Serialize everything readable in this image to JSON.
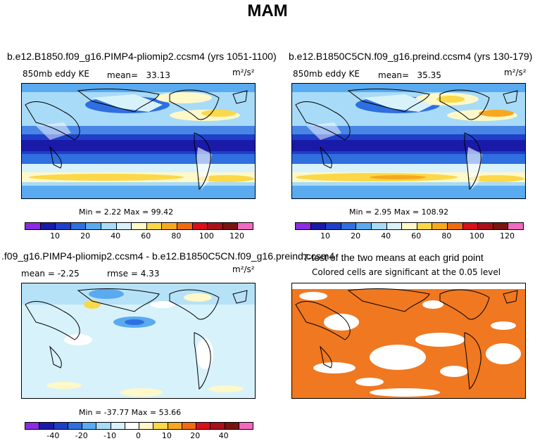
{
  "figure": {
    "title": "MAM"
  },
  "panels": [
    {
      "id": "p1",
      "title": "b.e12.B1850.f09_g16.PIMP4-pliomip2.ccsm4 (yrs 1051-1100)",
      "variable": "850mb eddy KE",
      "stat_label": "mean=",
      "stat_value": "33.13",
      "units": "m²/s²",
      "minmax_text": "Min =    2.22  Max =   99.42"
    },
    {
      "id": "p2",
      "title": "b.e12.B1850C5CN.f09_g16.preind.ccsm4 (yrs 130-179)",
      "variable": "850mb eddy KE",
      "stat_label": "mean=",
      "stat_value": "35.35",
      "units": "m²/s²",
      "minmax_text": "Min =    2.95  Max =  108.92"
    },
    {
      "id": "p3",
      "title": ".f09_g16.PIMP4-pliomip2.ccsm4 - b.e12.B1850C5CN.f09_g16.preind.ccsm4",
      "mean_text": "mean =   -2.25",
      "rmse_text": "rmse =    4.33",
      "units": "m²/s²",
      "minmax_text": "Min = -37.77  Max =   53.66"
    },
    {
      "id": "p4",
      "title": "T-test of the two means at each grid point",
      "subtitle": "Colored cells are significant at the 0.05 level"
    }
  ],
  "colorbars": {
    "abs": {
      "colors": [
        "#8b2be2",
        "#1a1aa8",
        "#1e3fc8",
        "#2f6fe0",
        "#5aaaf0",
        "#a8dbf7",
        "#d8f2fb",
        "#fff8c8",
        "#fbd84a",
        "#f7a81e",
        "#ef6a10",
        "#d8101a",
        "#a8101a",
        "#7a1410",
        "#f06ac0"
      ],
      "tick_labels": [
        "10",
        "20",
        "40",
        "60",
        "80",
        "100",
        "120"
      ],
      "tick_positions": [
        2,
        4,
        6,
        8,
        10,
        12,
        14
      ]
    },
    "diff": {
      "colors": [
        "#8b2be2",
        "#1a1aa8",
        "#1e3fc8",
        "#2f6fe0",
        "#5aaaf0",
        "#a8dbf7",
        "#d8f2fb",
        "#ffffff",
        "#fff8c8",
        "#fbd84a",
        "#f7a81e",
        "#ef6a10",
        "#d8101a",
        "#a8101a",
        "#7a1410",
        "#f06ac0"
      ],
      "tick_labels": [
        "-40",
        "-20",
        "-10",
        "0",
        "10",
        "20",
        "40"
      ],
      "tick_positions": [
        2,
        4,
        6,
        8,
        10,
        12,
        14
      ]
    }
  },
  "chart_data": [
    {
      "type": "heatmap",
      "title": "b.e12.B1850.f09_g16.PIMP4-pliomip2.ccsm4 (yrs 1051-1100)",
      "variable": "850mb eddy KE",
      "units": "m2/s2",
      "season": "MAM",
      "mean": 33.13,
      "min": 2.22,
      "max": 99.42,
      "levels": [
        10,
        20,
        40,
        60,
        80,
        100,
        120
      ]
    },
    {
      "type": "heatmap",
      "title": "b.e12.B1850C5CN.f09_g16.preind.ccsm4 (yrs 130-179)",
      "variable": "850mb eddy KE",
      "units": "m2/s2",
      "season": "MAM",
      "mean": 35.35,
      "min": 2.95,
      "max": 108.92,
      "levels": [
        10,
        20,
        40,
        60,
        80,
        100,
        120
      ]
    },
    {
      "type": "heatmap",
      "title": ".f09_g16.PIMP4-pliomip2.ccsm4 - b.e12.B1850C5CN.f09_g16.preind.ccsm4",
      "units": "m2/s2",
      "season": "MAM",
      "mean": -2.25,
      "rmse": 4.33,
      "min": -37.77,
      "max": 53.66,
      "levels": [
        -40,
        -20,
        -10,
        0,
        10,
        20,
        40
      ]
    },
    {
      "type": "heatmap",
      "title": "T-test of the two means at each grid point",
      "note": "Colored cells are significant at the 0.05 level",
      "significance_level": 0.05,
      "significant_color": "#f07820"
    }
  ]
}
